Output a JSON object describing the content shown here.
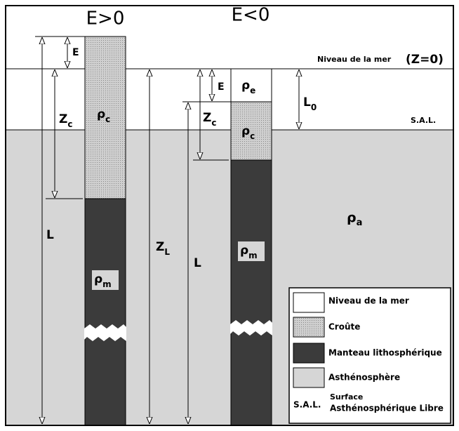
{
  "headers": {
    "positive": "E>0",
    "negative": "E<0"
  },
  "sea_level": {
    "label": "Niveau de la mer",
    "z": "(Z=0)"
  },
  "sal": "S.A.L.",
  "symbols": {
    "E": "E",
    "Zc": {
      "base": "Z",
      "sub": "c"
    },
    "L": "L",
    "ZL": {
      "base": "Z",
      "sub": "L"
    },
    "L0": {
      "base": "L",
      "sub": "0"
    },
    "rho_c": {
      "base": "ρ",
      "sub": "c"
    },
    "rho_m": {
      "base": "ρ",
      "sub": "m"
    },
    "rho_e": {
      "base": "ρ",
      "sub": "e"
    },
    "rho_a": {
      "base": "ρ",
      "sub": "a"
    }
  },
  "legend": {
    "items": [
      "Niveau de la mer",
      "Croûte",
      "Manteau lithosphérique",
      "Asthénosphère"
    ],
    "sal": {
      "abbr": "S.A.L.",
      "line1": "Surface",
      "line2": "Asthénosphérique Libre"
    }
  }
}
